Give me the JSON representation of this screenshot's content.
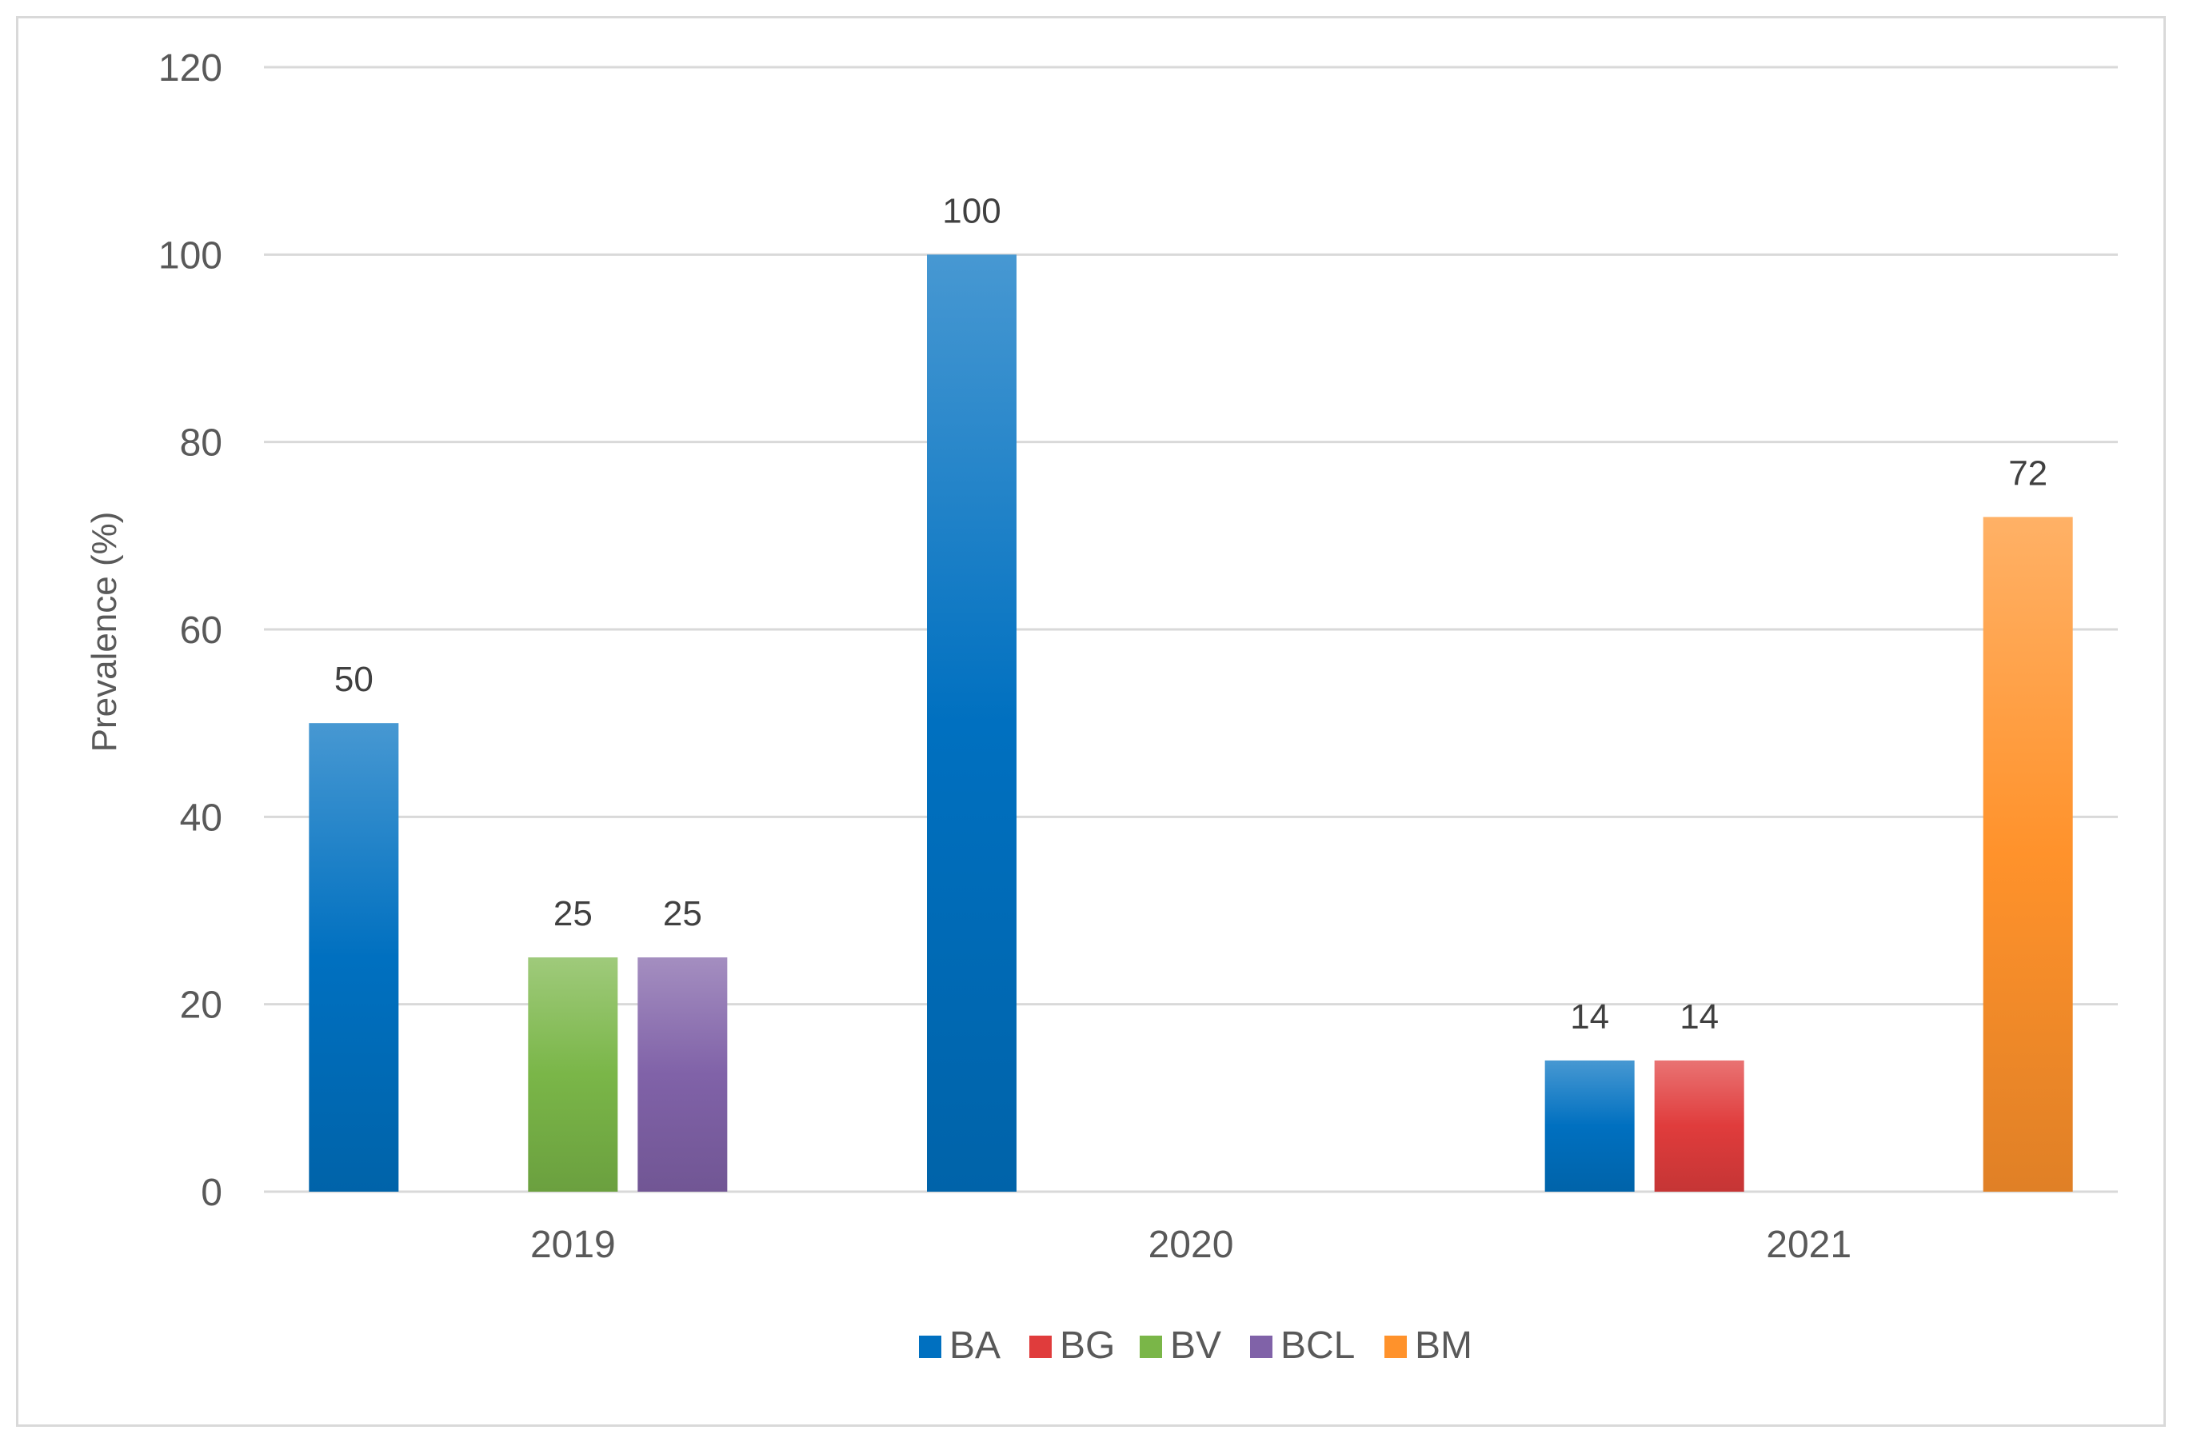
{
  "chart_data": {
    "type": "bar",
    "title": "",
    "xlabel": "",
    "ylabel": "Prevalence (%)",
    "ylim": [
      0,
      120
    ],
    "yticks": [
      0,
      20,
      40,
      60,
      80,
      100,
      120
    ],
    "grid": true,
    "legend_position": "bottom",
    "categories": [
      "2019",
      "2020",
      "2021"
    ],
    "series": [
      {
        "name": "BA",
        "color": "#0070C0",
        "values": [
          50,
          100,
          14
        ]
      },
      {
        "name": "BG",
        "color": "#E03C3C",
        "values": [
          null,
          null,
          14
        ]
      },
      {
        "name": "BV",
        "color": "#7AB648",
        "values": [
          25,
          null,
          null
        ]
      },
      {
        "name": "BCL",
        "color": "#8062A8",
        "values": [
          25,
          null,
          null
        ]
      },
      {
        "name": "BM",
        "color": "#FF922B",
        "values": [
          null,
          null,
          72
        ]
      }
    ]
  }
}
